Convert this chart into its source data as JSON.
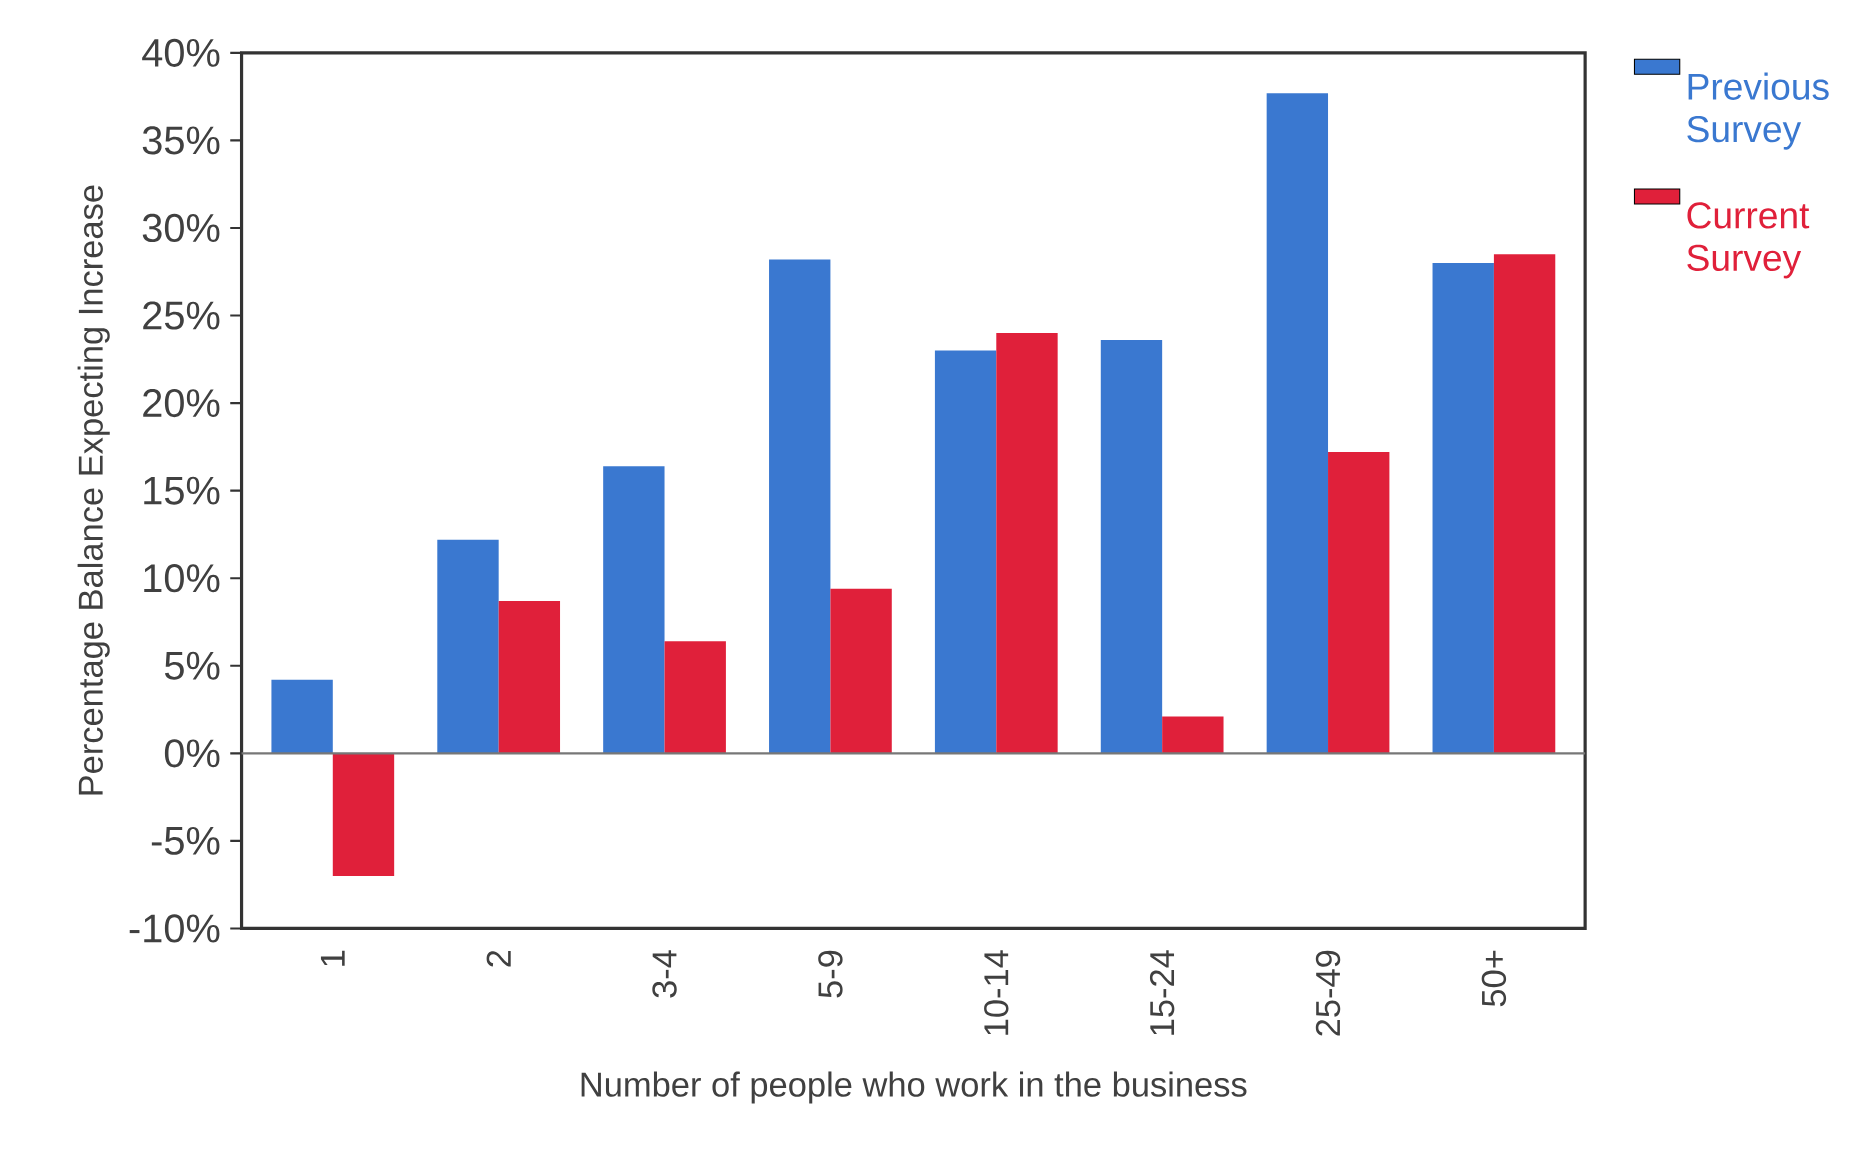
{
  "chart_data": {
    "type": "bar",
    "xlabel": "Number of people who work in the business",
    "ylabel": "Percentage Balance Expecting Increase",
    "categories": [
      "1",
      "2",
      "3-4",
      "5-9",
      "10-14",
      "15-24",
      "25-49",
      "50+"
    ],
    "series": [
      {
        "name": "Previous Survey",
        "color": "#3a78d0",
        "values": [
          4.2,
          12.2,
          16.4,
          28.2,
          23.0,
          23.6,
          37.7,
          28.0
        ]
      },
      {
        "name": "Current Survey",
        "color": "#e0203a",
        "values": [
          -7.0,
          8.7,
          6.4,
          9.4,
          24.0,
          2.1,
          17.2,
          28.5
        ]
      }
    ],
    "ylim": [
      -10,
      40
    ],
    "yticks": [
      {
        "value": -10,
        "label": "-10%"
      },
      {
        "value": -5,
        "label": "-5%"
      },
      {
        "value": 0,
        "label": "0%"
      },
      {
        "value": 5,
        "label": "5%"
      },
      {
        "value": 10,
        "label": "10%"
      },
      {
        "value": 15,
        "label": "15%"
      },
      {
        "value": 20,
        "label": "20%"
      },
      {
        "value": 25,
        "label": "25%"
      },
      {
        "value": 30,
        "label": "30%"
      },
      {
        "value": 35,
        "label": "35%"
      },
      {
        "value": 40,
        "label": "40%"
      }
    ],
    "ref_lines": [
      {
        "axis": "y",
        "value": 0,
        "color": "#777777"
      }
    ],
    "grid": false,
    "legend": "top right"
  }
}
